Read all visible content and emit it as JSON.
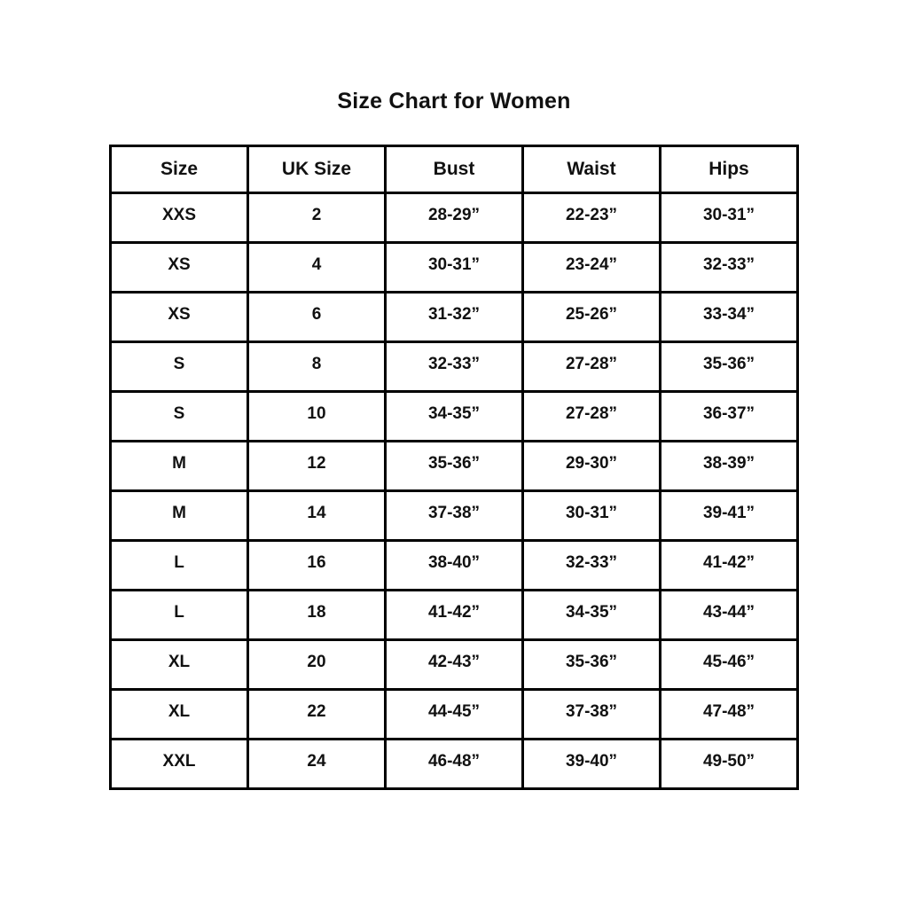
{
  "title": "Size Chart for Women",
  "table": {
    "headers": [
      "Size",
      "UK Size",
      "Bust",
      "Waist",
      "Hips"
    ],
    "rows": [
      [
        "XXS",
        "2",
        "28-29”",
        "22-23”",
        "30-31”"
      ],
      [
        "XS",
        "4",
        "30-31”",
        "23-24”",
        "32-33”"
      ],
      [
        "XS",
        "6",
        "31-32”",
        "25-26”",
        "33-34”"
      ],
      [
        "S",
        "8",
        "32-33”",
        "27-28”",
        "35-36”"
      ],
      [
        "S",
        "10",
        "34-35”",
        "27-28”",
        "36-37”"
      ],
      [
        "M",
        "12",
        "35-36”",
        "29-30”",
        "38-39”"
      ],
      [
        "M",
        "14",
        "37-38”",
        "30-31”",
        "39-41”"
      ],
      [
        "L",
        "16",
        "38-40”",
        "32-33”",
        "41-42”"
      ],
      [
        "L",
        "18",
        "41-42”",
        "34-35”",
        "43-44”"
      ],
      [
        "XL",
        "20",
        "42-43”",
        "35-36”",
        "45-46”"
      ],
      [
        "XL",
        "22",
        "44-45”",
        "37-38”",
        "47-48”"
      ],
      [
        "XXL",
        "24",
        "46-48”",
        "39-40”",
        "49-50”"
      ]
    ]
  },
  "colors": {
    "border": "#000000",
    "text": "#111111",
    "background": "#ffffff"
  }
}
